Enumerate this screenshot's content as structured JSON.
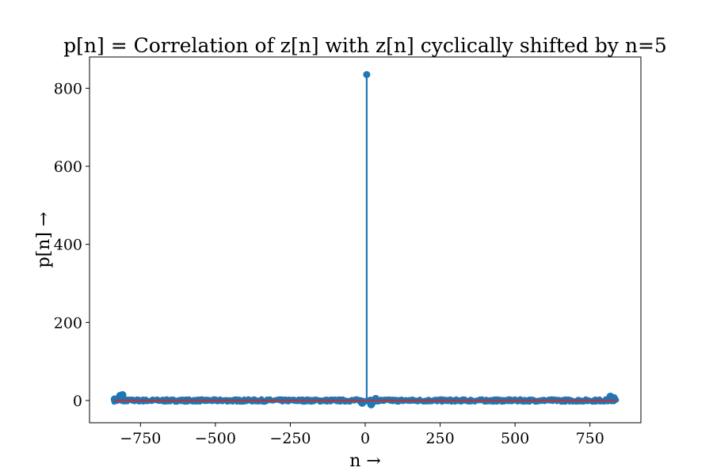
{
  "chart_data": {
    "type": "stem",
    "title": "p[n] = Correlation of z[n] with z[n] cyclically shifted by n=5",
    "xlabel": "n →",
    "ylabel": "p[n] →",
    "xlim": [
      -920,
      920
    ],
    "ylim": [
      -57,
      880
    ],
    "x_ticks": [
      -750,
      -500,
      -250,
      0,
      250,
      500,
      750
    ],
    "x_tick_labels": [
      "−750",
      "−500",
      "−250",
      "0",
      "250",
      "500",
      "750"
    ],
    "y_ticks": [
      0,
      200,
      400,
      600,
      800
    ],
    "y_tick_labels": [
      "0",
      "200",
      "400",
      "600",
      "800"
    ],
    "n_range": [
      -838,
      838
    ],
    "peak": {
      "x": 5,
      "y": 835
    },
    "baseline": 0,
    "noise_amplitude": 4,
    "edge_bumps": [
      {
        "x": -818,
        "y": 12
      },
      {
        "x": -810,
        "y": 14
      },
      {
        "x": -836,
        "y": 3
      },
      {
        "x": 818,
        "y": 10
      },
      {
        "x": 830,
        "y": 6
      }
    ],
    "center_dips": [
      {
        "x": -10,
        "y": -6
      },
      {
        "x": 20,
        "y": -10
      },
      {
        "x": 35,
        "y": 4
      }
    ],
    "series_color": "#1f77b4",
    "baseline_color": "#d62728",
    "grid": false
  }
}
